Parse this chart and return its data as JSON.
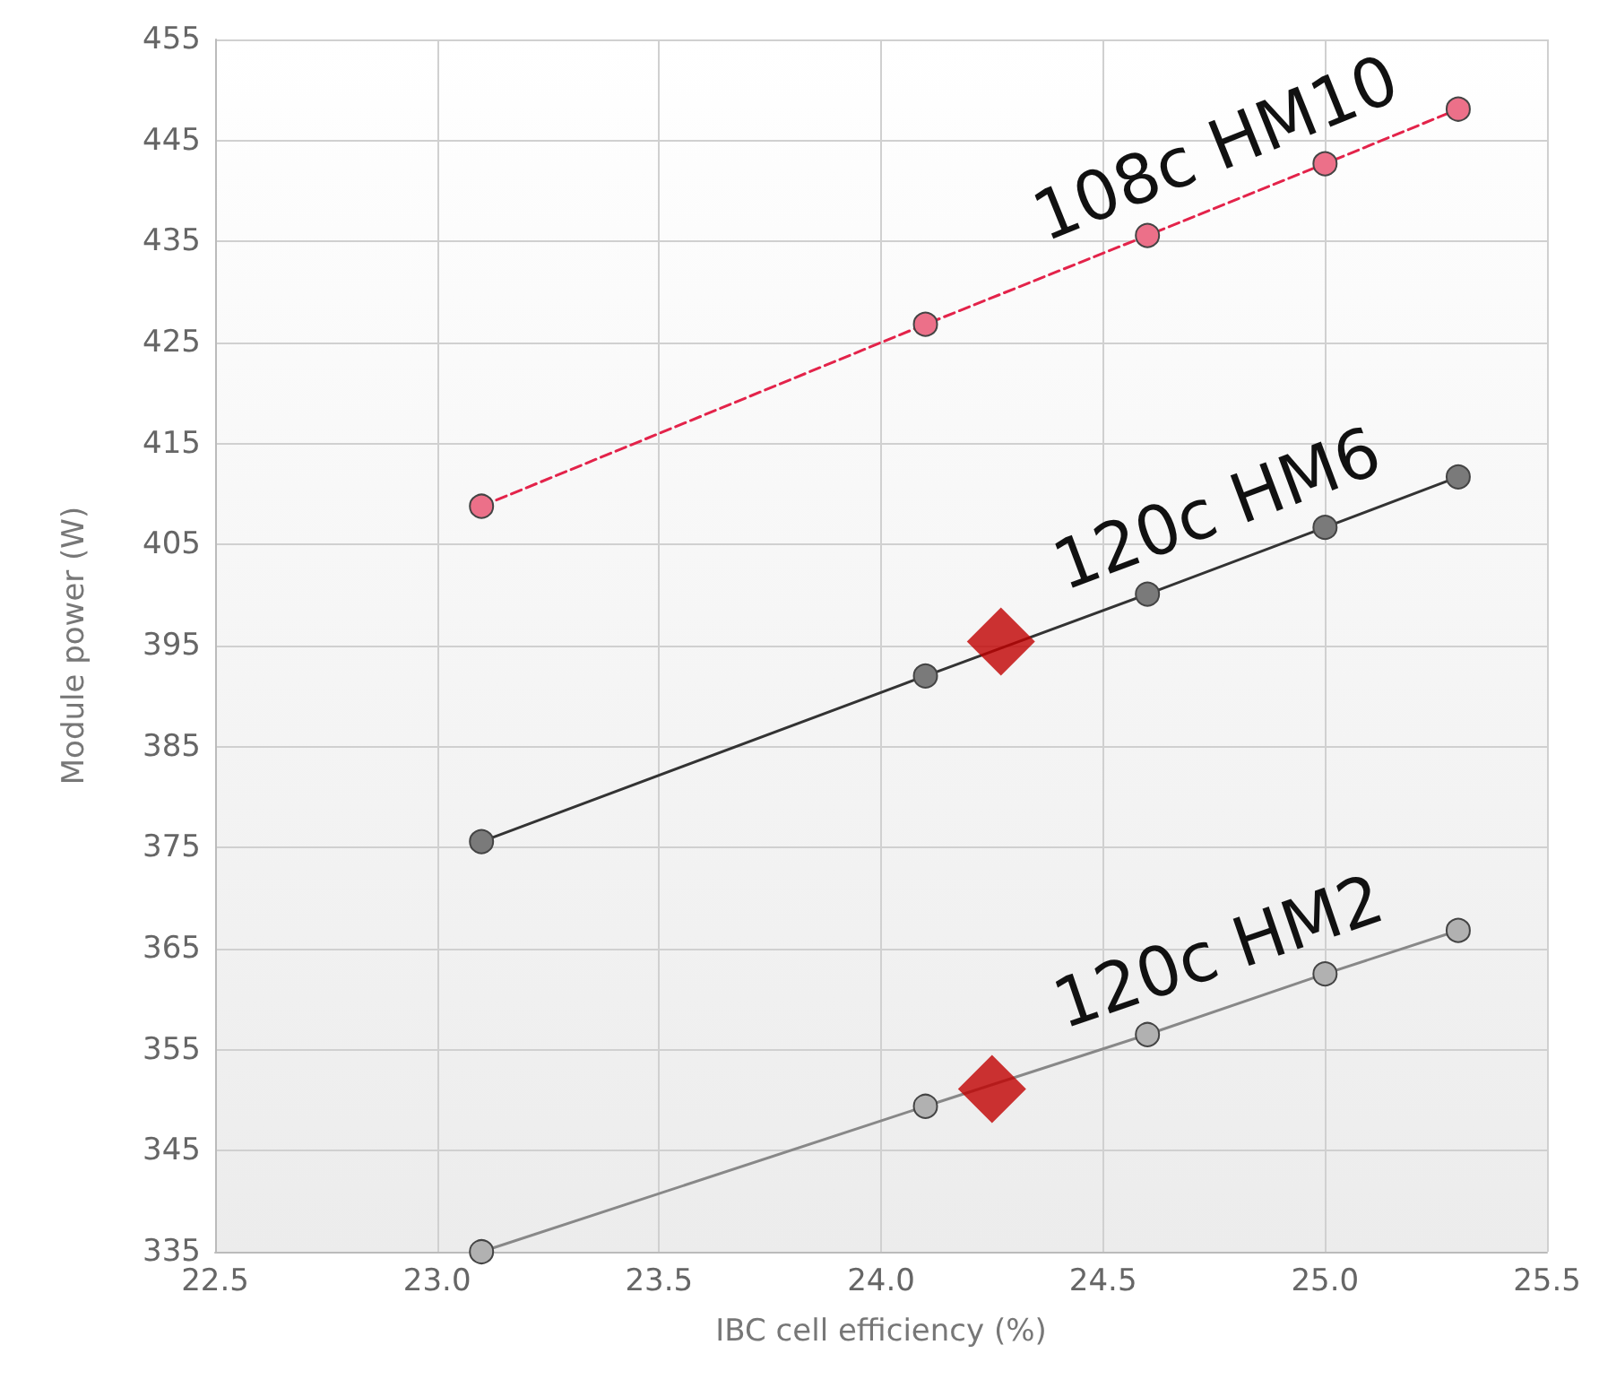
{
  "chart_data": {
    "type": "line",
    "xlabel": "IBC cell efficiency (%)",
    "ylabel": "Module power (W)",
    "xlim": [
      22.5,
      25.5
    ],
    "xticks": [
      {
        "value": 22.5,
        "label": "22.5"
      },
      {
        "value": 23,
        "label": "23.0"
      },
      {
        "value": 23.5,
        "label": "23.5"
      },
      {
        "value": 24,
        "label": "24.0"
      },
      {
        "value": 24.5,
        "label": "24.5"
      },
      {
        "value": 25,
        "label": "25.0"
      },
      {
        "value": 25.5,
        "label": "25.5"
      }
    ],
    "ylim": [
      335,
      455
    ],
    "yticks": [
      335,
      345,
      355,
      365,
      375,
      385,
      395,
      405,
      415,
      425,
      435,
      445,
      455
    ],
    "grid": true,
    "legend": false,
    "marker": "circle",
    "series": [
      {
        "name": "108c HM10",
        "color": "#e3234a",
        "line_style": "dashed",
        "x": [
          23.1,
          24.1,
          24.6,
          25.0,
          25.3
        ],
        "values": [
          408.8,
          426.8,
          435.6,
          442.7,
          448.1
        ]
      },
      {
        "name": "120c HM6",
        "color": "#333333",
        "line_style": "solid",
        "x": [
          23.1,
          24.1,
          24.6,
          25.0,
          25.3
        ],
        "values": [
          375.6,
          392.0,
          400.1,
          406.7,
          411.7
        ]
      },
      {
        "name": "120c HM2",
        "color": "#888888",
        "line_style": "solid",
        "x": [
          23.1,
          24.1,
          24.6,
          25.0,
          25.3
        ],
        "values": [
          335.0,
          349.4,
          356.5,
          362.5,
          366.8
        ]
      },
      {
        "type": "scatter",
        "color": "#c00000",
        "marker": "diamond",
        "x": [
          24.27,
          24.25
        ],
        "values": [
          395.4,
          351.1
        ]
      }
    ]
  }
}
